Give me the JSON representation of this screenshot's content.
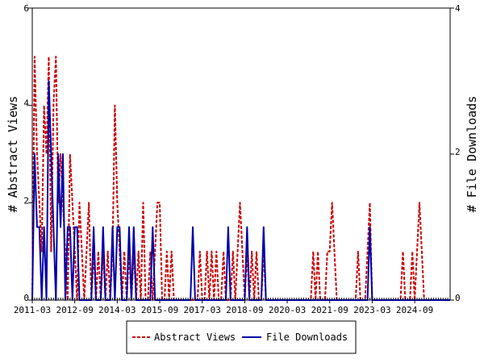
{
  "chart_data": {
    "type": "line",
    "title": "",
    "xlabel": "",
    "ylabel_left": "# Abstract Views",
    "ylabel_right": "# File Downloads",
    "ylim_left": [
      0,
      6
    ],
    "ylim_right": [
      0,
      4
    ],
    "yticks_left": [
      0,
      2,
      4,
      6
    ],
    "yticks_right": [
      0,
      2,
      4
    ],
    "x_start": "2011-03",
    "x_end": "2025-12",
    "x_tick_labels": [
      "2011-03",
      "2012-09",
      "2014-03",
      "2015-09",
      "2017-03",
      "2018-09",
      "2020-03",
      "2021-09",
      "2023-03",
      "2024-09"
    ],
    "legend_position": "bottom-center",
    "grid": false,
    "series": [
      {
        "name": "Abstract Views",
        "axis": "left",
        "color": "#cc0000",
        "style": "dashed",
        "points": [
          [
            "2011-03",
            0
          ],
          [
            "2011-04",
            5
          ],
          [
            "2011-05",
            3
          ],
          [
            "2011-06",
            2
          ],
          [
            "2011-07",
            1
          ],
          [
            "2011-08",
            4
          ],
          [
            "2011-09",
            3
          ],
          [
            "2011-10",
            5
          ],
          [
            "2011-11",
            1
          ],
          [
            "2011-12",
            4
          ],
          [
            "2012-01",
            5
          ],
          [
            "2012-02",
            2
          ],
          [
            "2012-03",
            3
          ],
          [
            "2012-04",
            2
          ],
          [
            "2012-05",
            1
          ],
          [
            "2012-06",
            0
          ],
          [
            "2012-07",
            3
          ],
          [
            "2012-08",
            2
          ],
          [
            "2012-09",
            1
          ],
          [
            "2012-10",
            0
          ],
          [
            "2012-11",
            2
          ],
          [
            "2012-12",
            1
          ],
          [
            "2013-01",
            0
          ],
          [
            "2013-02",
            1
          ],
          [
            "2013-03",
            2
          ],
          [
            "2013-04",
            0
          ],
          [
            "2013-05",
            1
          ],
          [
            "2013-06",
            0
          ],
          [
            "2013-07",
            1
          ],
          [
            "2013-08",
            0
          ],
          [
            "2013-09",
            1
          ],
          [
            "2013-10",
            0
          ],
          [
            "2013-11",
            1
          ],
          [
            "2013-12",
            0
          ],
          [
            "2014-01",
            1
          ],
          [
            "2014-02",
            4
          ],
          [
            "2014-03",
            2
          ],
          [
            "2014-04",
            1
          ],
          [
            "2014-05",
            0
          ],
          [
            "2014-06",
            1
          ],
          [
            "2014-07",
            0
          ],
          [
            "2014-08",
            1
          ],
          [
            "2014-09",
            0
          ],
          [
            "2014-10",
            1
          ],
          [
            "2014-11",
            0
          ],
          [
            "2014-12",
            1
          ],
          [
            "2015-01",
            0
          ],
          [
            "2015-02",
            2
          ],
          [
            "2015-03",
            0
          ],
          [
            "2015-04",
            0
          ],
          [
            "2015-05",
            1
          ],
          [
            "2015-06",
            0
          ],
          [
            "2015-07",
            1
          ],
          [
            "2015-08",
            2
          ],
          [
            "2015-09",
            2
          ],
          [
            "2015-10",
            0
          ],
          [
            "2015-11",
            0
          ],
          [
            "2015-12",
            1
          ],
          [
            "2016-01",
            0
          ],
          [
            "2016-02",
            1
          ],
          [
            "2016-03",
            0
          ],
          [
            "2017-01",
            0
          ],
          [
            "2017-02",
            1
          ],
          [
            "2017-03",
            0
          ],
          [
            "2017-04",
            0
          ],
          [
            "2017-05",
            1
          ],
          [
            "2017-06",
            0
          ],
          [
            "2017-07",
            1
          ],
          [
            "2017-08",
            0
          ],
          [
            "2017-09",
            1
          ],
          [
            "2017-10",
            0
          ],
          [
            "2017-11",
            0
          ],
          [
            "2017-12",
            1
          ],
          [
            "2018-01",
            0
          ],
          [
            "2018-02",
            0
          ],
          [
            "2018-03",
            0
          ],
          [
            "2018-04",
            1
          ],
          [
            "2018-05",
            0
          ],
          [
            "2018-06",
            1
          ],
          [
            "2018-07",
            2
          ],
          [
            "2018-08",
            1
          ],
          [
            "2018-09",
            0
          ],
          [
            "2018-10",
            1
          ],
          [
            "2018-11",
            0
          ],
          [
            "2018-12",
            1
          ],
          [
            "2019-01",
            0
          ],
          [
            "2019-02",
            1
          ],
          [
            "2019-03",
            0
          ],
          [
            "2019-04",
            0
          ],
          [
            "2019-05",
            1
          ],
          [
            "2019-06",
            0
          ],
          [
            "2021-01",
            0
          ],
          [
            "2021-02",
            1
          ],
          [
            "2021-03",
            0
          ],
          [
            "2021-04",
            1
          ],
          [
            "2021-05",
            0
          ],
          [
            "2021-06",
            0
          ],
          [
            "2021-07",
            0
          ],
          [
            "2021-08",
            1
          ],
          [
            "2021-09",
            1
          ],
          [
            "2021-10",
            2
          ],
          [
            "2021-11",
            1
          ],
          [
            "2021-12",
            0
          ],
          [
            "2022-08",
            0
          ],
          [
            "2022-09",
            1
          ],
          [
            "2022-10",
            0
          ],
          [
            "2022-11",
            0
          ],
          [
            "2022-12",
            0
          ],
          [
            "2023-01",
            1
          ],
          [
            "2023-02",
            2
          ],
          [
            "2023-03",
            0
          ],
          [
            "2024-03",
            0
          ],
          [
            "2024-04",
            1
          ],
          [
            "2024-05",
            0
          ],
          [
            "2024-06",
            0
          ],
          [
            "2024-07",
            0
          ],
          [
            "2024-08",
            1
          ],
          [
            "2024-09",
            0
          ],
          [
            "2024-10",
            1
          ],
          [
            "2024-11",
            2
          ],
          [
            "2024-12",
            1
          ],
          [
            "2025-01",
            0
          ],
          [
            "2025-12",
            0
          ]
        ]
      },
      {
        "name": "File Downloads",
        "axis": "right",
        "color": "#0000aa",
        "style": "solid",
        "points": [
          [
            "2011-03",
            0
          ],
          [
            "2011-04",
            2
          ],
          [
            "2011-05",
            1
          ],
          [
            "2011-06",
            1
          ],
          [
            "2011-07",
            0
          ],
          [
            "2011-08",
            1
          ],
          [
            "2011-09",
            0
          ],
          [
            "2011-10",
            3
          ],
          [
            "2011-11",
            2
          ],
          [
            "2011-12",
            1
          ],
          [
            "2012-01",
            0
          ],
          [
            "2012-02",
            2
          ],
          [
            "2012-03",
            1
          ],
          [
            "2012-04",
            2
          ],
          [
            "2012-05",
            0
          ],
          [
            "2012-06",
            1
          ],
          [
            "2012-07",
            1
          ],
          [
            "2012-08",
            0
          ],
          [
            "2012-09",
            1
          ],
          [
            "2012-10",
            1
          ],
          [
            "2012-11",
            0
          ],
          [
            "2012-12",
            0
          ],
          [
            "2013-04",
            0
          ],
          [
            "2013-05",
            1
          ],
          [
            "2013-06",
            0
          ],
          [
            "2013-07",
            0
          ],
          [
            "2013-08",
            0
          ],
          [
            "2013-09",
            1
          ],
          [
            "2013-10",
            0
          ],
          [
            "2013-11",
            0
          ],
          [
            "2013-12",
            0
          ],
          [
            "2014-01",
            1
          ],
          [
            "2014-02",
            0
          ],
          [
            "2014-03",
            1
          ],
          [
            "2014-04",
            1
          ],
          [
            "2014-05",
            0
          ],
          [
            "2014-06",
            0
          ],
          [
            "2014-07",
            0
          ],
          [
            "2014-08",
            1
          ],
          [
            "2014-09",
            0
          ],
          [
            "2014-10",
            1
          ],
          [
            "2014-11",
            0
          ],
          [
            "2015-04",
            0
          ],
          [
            "2015-05",
            0
          ],
          [
            "2015-06",
            1
          ],
          [
            "2015-07",
            0
          ],
          [
            "2016-10",
            0
          ],
          [
            "2016-11",
            1
          ],
          [
            "2016-12",
            0
          ],
          [
            "2018-01",
            0
          ],
          [
            "2018-02",
            1
          ],
          [
            "2018-03",
            0
          ],
          [
            "2018-09",
            0
          ],
          [
            "2018-10",
            1
          ],
          [
            "2018-11",
            0
          ],
          [
            "2019-04",
            0
          ],
          [
            "2019-05",
            1
          ],
          [
            "2019-06",
            0
          ],
          [
            "2023-01",
            0
          ],
          [
            "2023-02",
            1
          ],
          [
            "2023-03",
            0
          ],
          [
            "2025-12",
            0
          ]
        ]
      }
    ]
  }
}
